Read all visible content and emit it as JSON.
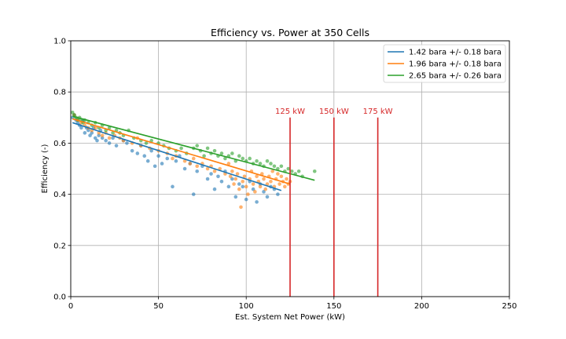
{
  "chart_data": {
    "type": "scatter",
    "title": "Efficiency vs. Power at 350 Cells",
    "xlabel": "Est. System Net Power (kW)",
    "ylabel": "Efficiency (-)",
    "xlim": [
      0,
      250
    ],
    "ylim": [
      0,
      1.0
    ],
    "xticks": [
      "0",
      "50",
      "100",
      "150",
      "200",
      "250"
    ],
    "yticks": [
      "0.0",
      "0.2",
      "0.4",
      "0.6",
      "0.8",
      "1.0"
    ],
    "grid": true,
    "legend_position": "top-right",
    "series": [
      {
        "name": "1.42 bara +/- 0.18 bara",
        "color": "#1f77b4",
        "fit_line": [
          [
            1,
            0.68
          ],
          [
            120,
            0.415
          ]
        ],
        "points": [
          [
            1,
            0.7
          ],
          [
            2,
            0.71
          ],
          [
            3,
            0.69
          ],
          [
            4,
            0.68
          ],
          [
            5,
            0.67
          ],
          [
            6,
            0.66
          ],
          [
            7,
            0.69
          ],
          [
            8,
            0.64
          ],
          [
            9,
            0.66
          ],
          [
            10,
            0.65
          ],
          [
            11,
            0.63
          ],
          [
            12,
            0.64
          ],
          [
            13,
            0.66
          ],
          [
            14,
            0.62
          ],
          [
            15,
            0.61
          ],
          [
            16,
            0.63
          ],
          [
            17,
            0.65
          ],
          [
            18,
            0.62
          ],
          [
            20,
            0.61
          ],
          [
            22,
            0.6
          ],
          [
            24,
            0.62
          ],
          [
            26,
            0.59
          ],
          [
            30,
            0.61
          ],
          [
            32,
            0.6
          ],
          [
            35,
            0.57
          ],
          [
            38,
            0.56
          ],
          [
            40,
            0.59
          ],
          [
            42,
            0.55
          ],
          [
            44,
            0.53
          ],
          [
            46,
            0.57
          ],
          [
            48,
            0.51
          ],
          [
            50,
            0.55
          ],
          [
            52,
            0.52
          ],
          [
            55,
            0.54
          ],
          [
            58,
            0.43
          ],
          [
            60,
            0.53
          ],
          [
            62,
            0.55
          ],
          [
            65,
            0.5
          ],
          [
            68,
            0.52
          ],
          [
            70,
            0.4
          ],
          [
            72,
            0.49
          ],
          [
            75,
            0.51
          ],
          [
            78,
            0.46
          ],
          [
            80,
            0.48
          ],
          [
            82,
            0.42
          ],
          [
            84,
            0.47
          ],
          [
            86,
            0.45
          ],
          [
            88,
            0.49
          ],
          [
            90,
            0.43
          ],
          [
            92,
            0.46
          ],
          [
            94,
            0.39
          ],
          [
            96,
            0.44
          ],
          [
            98,
            0.43
          ],
          [
            100,
            0.38
          ],
          [
            102,
            0.45
          ],
          [
            104,
            0.42
          ],
          [
            106,
            0.37
          ],
          [
            108,
            0.44
          ],
          [
            110,
            0.41
          ],
          [
            112,
            0.39
          ],
          [
            114,
            0.43
          ],
          [
            116,
            0.42
          ],
          [
            118,
            0.4
          ]
        ]
      },
      {
        "name": "1.96 bara +/- 0.18 bara",
        "color": "#ff7f0e",
        "fit_line": [
          [
            1,
            0.695
          ],
          [
            125,
            0.44
          ]
        ],
        "points": [
          [
            2,
            0.71
          ],
          [
            4,
            0.69
          ],
          [
            6,
            0.68
          ],
          [
            8,
            0.67
          ],
          [
            10,
            0.66
          ],
          [
            12,
            0.65
          ],
          [
            14,
            0.66
          ],
          [
            16,
            0.64
          ],
          [
            18,
            0.63
          ],
          [
            20,
            0.64
          ],
          [
            22,
            0.62
          ],
          [
            25,
            0.63
          ],
          [
            28,
            0.62
          ],
          [
            30,
            0.61
          ],
          [
            35,
            0.6
          ],
          [
            38,
            0.62
          ],
          [
            40,
            0.59
          ],
          [
            45,
            0.58
          ],
          [
            50,
            0.57
          ],
          [
            55,
            0.56
          ],
          [
            58,
            0.54
          ],
          [
            60,
            0.55
          ],
          [
            65,
            0.53
          ],
          [
            68,
            0.52
          ],
          [
            70,
            0.54
          ],
          [
            72,
            0.51
          ],
          [
            75,
            0.52
          ],
          [
            78,
            0.5
          ],
          [
            80,
            0.51
          ],
          [
            82,
            0.49
          ],
          [
            85,
            0.5
          ],
          [
            88,
            0.48
          ],
          [
            90,
            0.52
          ],
          [
            91,
            0.47
          ],
          [
            92,
            0.49
          ],
          [
            93,
            0.44
          ],
          [
            94,
            0.46
          ],
          [
            95,
            0.48
          ],
          [
            96,
            0.42
          ],
          [
            97,
            0.35
          ],
          [
            98,
            0.45
          ],
          [
            99,
            0.47
          ],
          [
            100,
            0.43
          ],
          [
            101,
            0.4
          ],
          [
            102,
            0.46
          ],
          [
            103,
            0.49
          ],
          [
            104,
            0.44
          ],
          [
            105,
            0.41
          ],
          [
            106,
            0.47
          ],
          [
            107,
            0.45
          ],
          [
            108,
            0.43
          ],
          [
            109,
            0.48
          ],
          [
            110,
            0.46
          ],
          [
            111,
            0.42
          ],
          [
            112,
            0.44
          ],
          [
            113,
            0.47
          ],
          [
            114,
            0.45
          ],
          [
            115,
            0.49
          ],
          [
            116,
            0.43
          ],
          [
            117,
            0.46
          ],
          [
            118,
            0.48
          ],
          [
            119,
            0.44
          ],
          [
            120,
            0.47
          ],
          [
            121,
            0.45
          ],
          [
            122,
            0.43
          ],
          [
            123,
            0.46
          ],
          [
            124,
            0.44
          ],
          [
            125,
            0.45
          ]
        ]
      },
      {
        "name": "2.65 bara +/- 0.26 bara",
        "color": "#2ca02c",
        "fit_line": [
          [
            1,
            0.705
          ],
          [
            139,
            0.455
          ]
        ],
        "points": [
          [
            1,
            0.72
          ],
          [
            2,
            0.71
          ],
          [
            3,
            0.7
          ],
          [
            4,
            0.69
          ],
          [
            5,
            0.7
          ],
          [
            6,
            0.69
          ],
          [
            7,
            0.68
          ],
          [
            8,
            0.69
          ],
          [
            10,
            0.68
          ],
          [
            12,
            0.67
          ],
          [
            14,
            0.68
          ],
          [
            16,
            0.66
          ],
          [
            18,
            0.67
          ],
          [
            20,
            0.65
          ],
          [
            22,
            0.66
          ],
          [
            24,
            0.64
          ],
          [
            26,
            0.65
          ],
          [
            28,
            0.64
          ],
          [
            30,
            0.63
          ],
          [
            33,
            0.65
          ],
          [
            36,
            0.62
          ],
          [
            40,
            0.61
          ],
          [
            43,
            0.6
          ],
          [
            46,
            0.61
          ],
          [
            50,
            0.6
          ],
          [
            53,
            0.59
          ],
          [
            56,
            0.58
          ],
          [
            60,
            0.57
          ],
          [
            63,
            0.58
          ],
          [
            66,
            0.56
          ],
          [
            70,
            0.58
          ],
          [
            72,
            0.59
          ],
          [
            74,
            0.57
          ],
          [
            76,
            0.55
          ],
          [
            78,
            0.58
          ],
          [
            80,
            0.56
          ],
          [
            82,
            0.57
          ],
          [
            84,
            0.55
          ],
          [
            86,
            0.56
          ],
          [
            88,
            0.54
          ],
          [
            90,
            0.55
          ],
          [
            92,
            0.56
          ],
          [
            94,
            0.53
          ],
          [
            96,
            0.55
          ],
          [
            98,
            0.54
          ],
          [
            100,
            0.53
          ],
          [
            102,
            0.54
          ],
          [
            104,
            0.52
          ],
          [
            106,
            0.53
          ],
          [
            108,
            0.52
          ],
          [
            110,
            0.51
          ],
          [
            112,
            0.53
          ],
          [
            114,
            0.52
          ],
          [
            116,
            0.51
          ],
          [
            118,
            0.5
          ],
          [
            120,
            0.51
          ],
          [
            122,
            0.49
          ],
          [
            124,
            0.5
          ],
          [
            126,
            0.49
          ],
          [
            128,
            0.48
          ],
          [
            130,
            0.49
          ],
          [
            132,
            0.47
          ],
          [
            139,
            0.49
          ]
        ]
      }
    ],
    "annotations": [
      {
        "label": "125 kW",
        "x": 125,
        "y": 0.7,
        "color": "#d62728"
      },
      {
        "label": "150 kW",
        "x": 150,
        "y": 0.7,
        "color": "#d62728"
      },
      {
        "label": "175 kW",
        "x": 175,
        "y": 0.7,
        "color": "#d62728"
      }
    ]
  }
}
